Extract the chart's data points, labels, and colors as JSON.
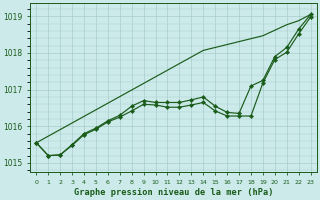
{
  "title": "Graphe pression niveau de la mer (hPa)",
  "background_color": "#cceaea",
  "grid_color": "#aacccc",
  "line_color": "#1a5c1a",
  "x_labels": [
    "0",
    "1",
    "2",
    "3",
    "4",
    "5",
    "6",
    "7",
    "8",
    "9",
    "10",
    "11",
    "12",
    "13",
    "14",
    "15",
    "16",
    "17",
    "18",
    "19",
    "20",
    "21",
    "22",
    "23"
  ],
  "ylim": [
    1014.75,
    1019.35
  ],
  "yticks": [
    1015,
    1016,
    1017,
    1018,
    1019
  ],
  "line_straight": [
    1015.55,
    1015.73,
    1015.91,
    1016.09,
    1016.27,
    1016.45,
    1016.63,
    1016.81,
    1016.99,
    1017.17,
    1017.35,
    1017.53,
    1017.71,
    1017.89,
    1018.07,
    1018.15,
    1018.23,
    1018.31,
    1018.39,
    1018.47,
    1018.62,
    1018.77,
    1018.88,
    1019.05
  ],
  "line_upper": [
    1015.55,
    1015.2,
    1015.22,
    1015.5,
    1015.8,
    1015.95,
    1016.15,
    1016.3,
    1016.55,
    1016.7,
    1016.65,
    1016.65,
    1016.65,
    1016.72,
    1016.8,
    1016.55,
    1016.38,
    1016.35,
    1017.1,
    1017.25,
    1017.9,
    1018.15,
    1018.65,
    1019.05
  ],
  "line_lower": [
    1015.55,
    1015.2,
    1015.22,
    1015.48,
    1015.77,
    1015.92,
    1016.12,
    1016.25,
    1016.42,
    1016.6,
    1016.58,
    1016.52,
    1016.52,
    1016.58,
    1016.65,
    1016.42,
    1016.28,
    1016.28,
    1016.28,
    1017.18,
    1017.82,
    1018.02,
    1018.52,
    1018.98
  ]
}
